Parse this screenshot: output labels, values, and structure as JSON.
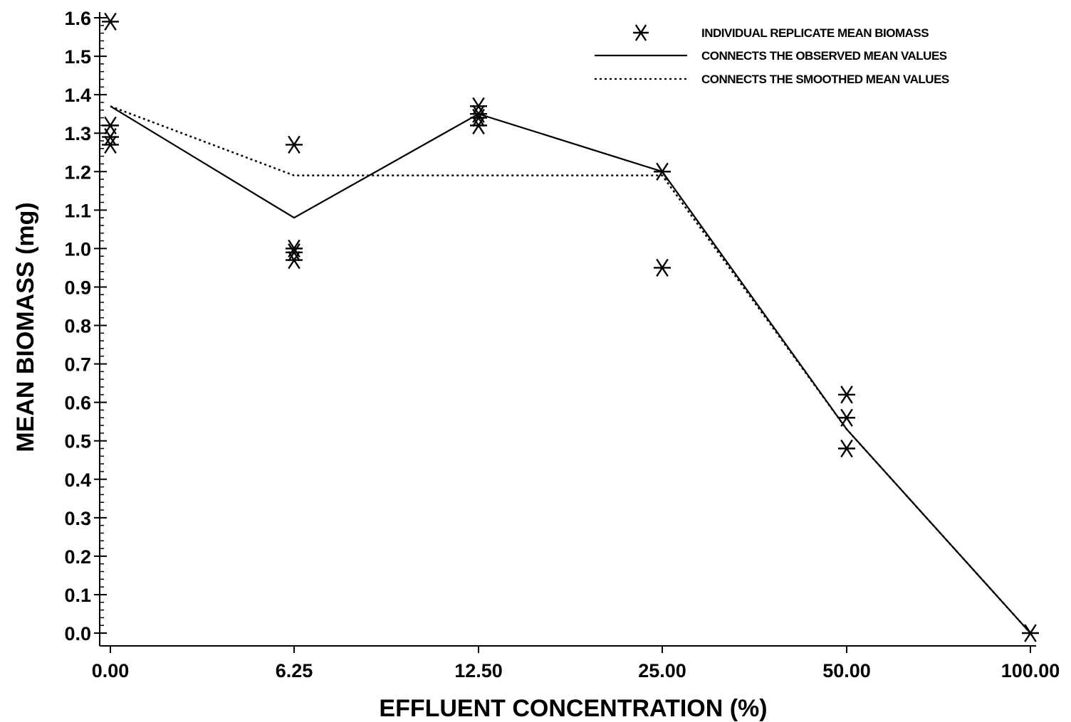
{
  "chart_data": {
    "type": "line",
    "xlabel": "EFFLUENT CONCENTRATION (%)",
    "ylabel": "MEAN BIOMASS (mg)",
    "categories": [
      "0.00",
      "6.25",
      "12.50",
      "25.00",
      "50.00",
      "100.00"
    ],
    "ylim": [
      0.0,
      1.6
    ],
    "yticks": [
      "0.0",
      "0.1",
      "0.2",
      "0.3",
      "0.4",
      "0.5",
      "0.6",
      "0.7",
      "0.8",
      "0.9",
      "1.0",
      "1.1",
      "1.2",
      "1.3",
      "1.4",
      "1.5",
      "1.6"
    ],
    "grid": false,
    "legend_position": "top-right",
    "legend": [
      {
        "label": "INDIVIDUAL REPLICATE MEAN BIOMASS",
        "style": "asterisk"
      },
      {
        "label": "CONNECTS THE OBSERVED MEAN VALUES",
        "style": "solid"
      },
      {
        "label": "CONNECTS THE SMOOTHED MEAN VALUES",
        "style": "dotted"
      }
    ],
    "replicates": [
      {
        "category": "0.00",
        "values": [
          1.59,
          1.32,
          1.29,
          1.27
        ]
      },
      {
        "category": "6.25",
        "values": [
          1.27,
          1.0,
          0.99,
          0.97
        ]
      },
      {
        "category": "12.50",
        "values": [
          1.37,
          1.35,
          1.34,
          1.32
        ]
      },
      {
        "category": "25.00",
        "values": [
          1.2,
          0.95
        ]
      },
      {
        "category": "50.00",
        "values": [
          0.62,
          0.56,
          0.48
        ]
      },
      {
        "category": "100.00",
        "values": [
          0.0
        ]
      }
    ],
    "series": [
      {
        "name": "CONNECTS THE OBSERVED MEAN VALUES",
        "style": "solid",
        "values": [
          1.37,
          1.08,
          1.35,
          1.2,
          0.53,
          0.0
        ]
      },
      {
        "name": "CONNECTS THE SMOOTHED MEAN VALUES",
        "style": "dotted",
        "values": [
          1.37,
          1.19,
          1.19,
          1.19,
          0.53,
          0.0
        ]
      }
    ]
  }
}
